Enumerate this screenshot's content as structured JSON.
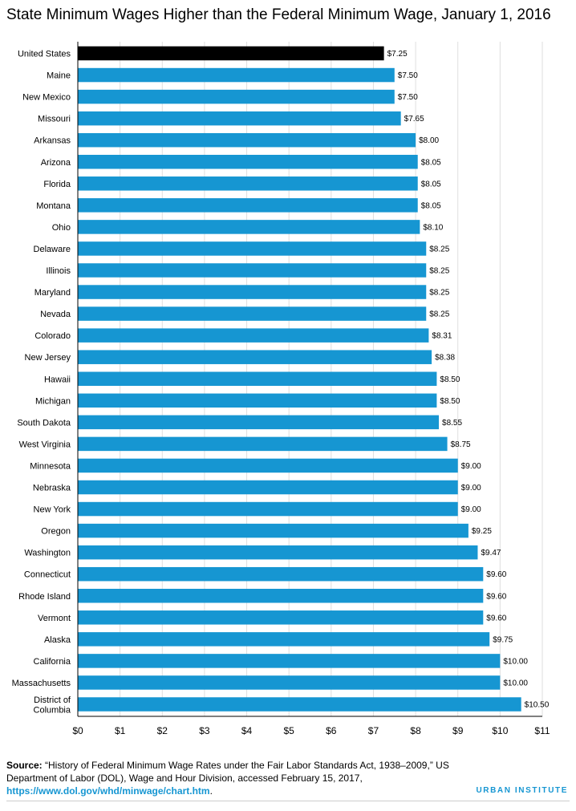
{
  "chart_data": {
    "type": "bar",
    "orientation": "horizontal",
    "title": "State Minimum Wages Higher than the Federal Minimum Wage, January 1, 2016",
    "xlabel": "",
    "ylabel": "",
    "xlim": [
      0,
      11
    ],
    "grid": "vertical",
    "legend": "none",
    "categories": [
      "United States",
      "Maine",
      "New Mexico",
      "Missouri",
      "Arkansas",
      "Arizona",
      "Florida",
      "Montana",
      "Ohio",
      "Delaware",
      "Illinois",
      "Maryland",
      "Nevada",
      "Colorado",
      "New Jersey",
      "Hawaii",
      "Michigan",
      "South Dakota",
      "West Virginia",
      "Minnesota",
      "Nebraska",
      "New York",
      "Oregon",
      "Washington",
      "Connecticut",
      "Rhode Island",
      "Vermont",
      "Alaska",
      "California",
      "Massachusetts",
      "District of Columbia"
    ],
    "category_display": [
      [
        "United States"
      ],
      [
        "Maine"
      ],
      [
        "New Mexico"
      ],
      [
        "Missouri"
      ],
      [
        "Arkansas"
      ],
      [
        "Arizona"
      ],
      [
        "Florida"
      ],
      [
        "Montana"
      ],
      [
        "Ohio"
      ],
      [
        "Delaware"
      ],
      [
        "Illinois"
      ],
      [
        "Maryland"
      ],
      [
        "Nevada"
      ],
      [
        "Colorado"
      ],
      [
        "New Jersey"
      ],
      [
        "Hawaii"
      ],
      [
        "Michigan"
      ],
      [
        "South Dakota"
      ],
      [
        "West Virginia"
      ],
      [
        "Minnesota"
      ],
      [
        "Nebraska"
      ],
      [
        "New York"
      ],
      [
        "Oregon"
      ],
      [
        "Washington"
      ],
      [
        "Connecticut"
      ],
      [
        "Rhode Island"
      ],
      [
        "Vermont"
      ],
      [
        "Alaska"
      ],
      [
        "California"
      ],
      [
        "Massachusetts"
      ],
      [
        "District of",
        "Columbia"
      ]
    ],
    "values": [
      7.25,
      7.5,
      7.5,
      7.65,
      8.0,
      8.05,
      8.05,
      8.05,
      8.1,
      8.25,
      8.25,
      8.25,
      8.25,
      8.31,
      8.38,
      8.5,
      8.5,
      8.55,
      8.75,
      9.0,
      9.0,
      9.0,
      9.25,
      9.47,
      9.6,
      9.6,
      9.6,
      9.75,
      10.0,
      10.0,
      10.5
    ],
    "value_labels": [
      "$7.25",
      "$7.50",
      "$7.50",
      "$7.65",
      "$8.00",
      "$8.05",
      "$8.05",
      "$8.05",
      "$8.10",
      "$8.25",
      "$8.25",
      "$8.25",
      "$8.25",
      "$8.31",
      "$8.38",
      "$8.50",
      "$8.50",
      "$8.55",
      "$8.75",
      "$9.00",
      "$9.00",
      "$9.00",
      "$9.25",
      "$9.47",
      "$9.60",
      "$9.60",
      "$9.60",
      "$9.75",
      "$10.00",
      "$10.00",
      "$10.50"
    ],
    "ticks": [
      0,
      1,
      2,
      3,
      4,
      5,
      6,
      7,
      8,
      9,
      10,
      11
    ],
    "tick_labels": [
      "$0",
      "$1",
      "$2",
      "$3",
      "$4",
      "$5",
      "$6",
      "$7",
      "$8",
      "$9",
      "$10",
      "$11"
    ],
    "bar_colors": {
      "highlight": "#000000",
      "default": "#1696d2"
    },
    "highlight_category": "United States"
  },
  "colors": {
    "gridline": "#dedede",
    "axis": "#000000",
    "brand": "#1696d2"
  },
  "source": {
    "label": "Source:",
    "text": " “History of Federal Minimum Wage Rates under the Fair Labor Standards Act, 1938–2009,” US Department of Labor (DOL), Wage and Hour Division, accessed February 15, 2017, ",
    "link": "https://www.dol.gov/whd/minwage/chart.htm",
    "tail": "."
  },
  "branding": {
    "name": "URBAN INSTITUTE"
  }
}
